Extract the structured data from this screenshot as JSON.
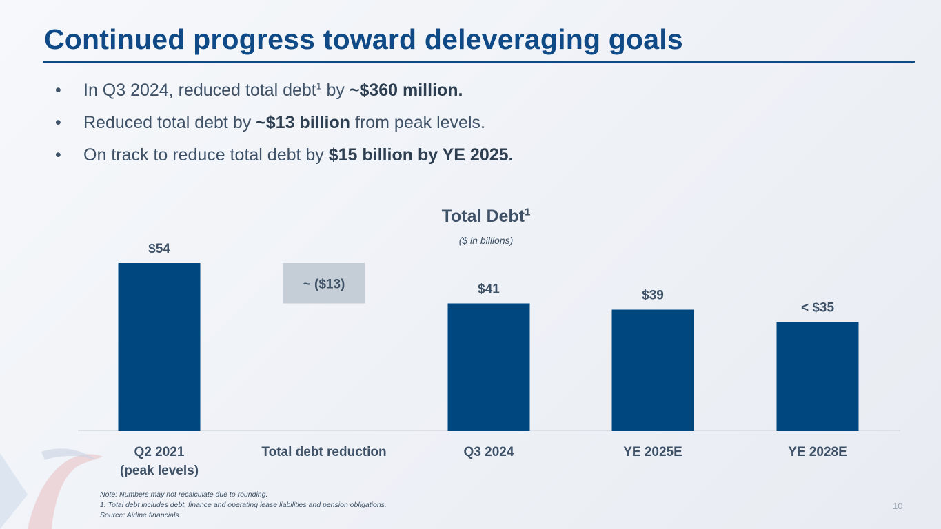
{
  "slide": {
    "title": "Continued progress toward deleveraging goals",
    "page_number": "10"
  },
  "bullets": {
    "marker": "•",
    "b1": {
      "pre": "In Q3 2024, reduced total debt",
      "sup": "1",
      "mid": " by ",
      "bold": "~$360 million."
    },
    "b2": {
      "pre": "Reduced total debt by ",
      "bold": "~$13 billion",
      "post": " from peak levels."
    },
    "b3": {
      "pre": "On track to reduce total debt by ",
      "bold": "$15 billion by YE 2025."
    }
  },
  "chart_data": {
    "type": "bar",
    "title": "Total Debt",
    "title_sup": "1",
    "subtitle": "($ in billions)",
    "categories": [
      "Q2 2021",
      "Total debt reduction",
      "Q3 2024",
      "YE 2025E",
      "YE 2028E"
    ],
    "category_sublabels": [
      "(peak levels)",
      "",
      "",
      "",
      ""
    ],
    "values": [
      54,
      null,
      41,
      39,
      35
    ],
    "value_labels": [
      "$54",
      "",
      "$41",
      "$39",
      "< $35"
    ],
    "reduction": {
      "from": 41,
      "to": 54,
      "value": -13,
      "label": "~ ($13)"
    },
    "ylim": [
      0,
      60
    ],
    "colors": {
      "bar": "#00467f",
      "reduction": "#c5ced6",
      "axis": "#d6dbe1"
    }
  },
  "notes": [
    "Note: Numbers may not recalculate due to rounding.",
    "1. Total debt includes debt, finance and operating lease liabilities and pension obligations.",
    "Source: Airline financials."
  ]
}
